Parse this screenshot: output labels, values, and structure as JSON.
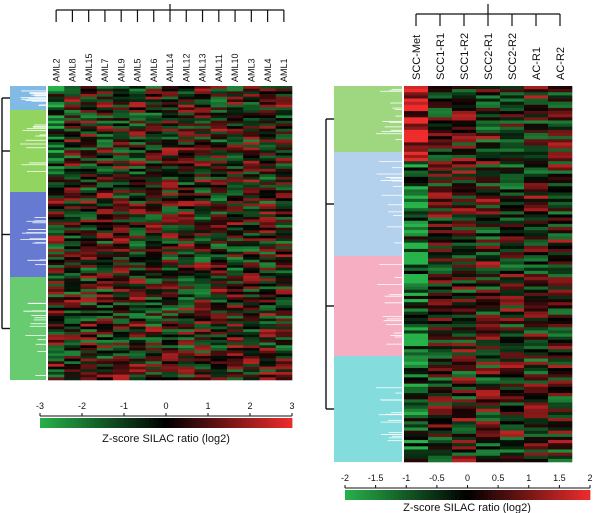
{
  "chart_data": [
    {
      "type": "heatmap",
      "title": "",
      "columns": [
        "AML2",
        "AML8",
        "AML15",
        "AML7",
        "AML9",
        "AML5",
        "AML6",
        "AML14",
        "AML12",
        "AML13",
        "AML11",
        "AML10",
        "AML3",
        "AML4",
        "AML1"
      ],
      "colorbar": {
        "label": "Z-score SILAC ratio (log2)",
        "ticks": [
          "-3",
          "-2",
          "-1",
          "0",
          "1",
          "2",
          "3"
        ],
        "range": [
          -3,
          3
        ],
        "colors": {
          "low": "#27b24a",
          "mid": "#000000",
          "high": "#ee2c2c"
        }
      },
      "row_clusters": [
        {
          "color": "#6aaee0"
        },
        {
          "color": "#7fcc44"
        },
        {
          "color": "#4a63c8"
        },
        {
          "color": "#4fc257"
        }
      ]
    },
    {
      "type": "heatmap",
      "title": "",
      "columns": [
        "SCC-Met",
        "SCC1-R1",
        "SCC1-R2",
        "SCC2-R1",
        "SCC2-R2",
        "AC-R1",
        "AC-R2"
      ],
      "colorbar": {
        "label": "Z-score SILAC ratio (log2)",
        "ticks": [
          "-2",
          "-1.5",
          "-1",
          "-0.5",
          "0",
          "0.5",
          "1",
          "1.5",
          "2"
        ],
        "range": [
          -2,
          2
        ],
        "colors": {
          "low": "#27b24a",
          "mid": "#000000",
          "high": "#ee2c2c"
        }
      },
      "row_clusters": [
        {
          "color": "#8dd06a"
        },
        {
          "color": "#a6c8ea"
        },
        {
          "color": "#f4a0b8"
        },
        {
          "color": "#6fd6d6"
        }
      ]
    }
  ]
}
